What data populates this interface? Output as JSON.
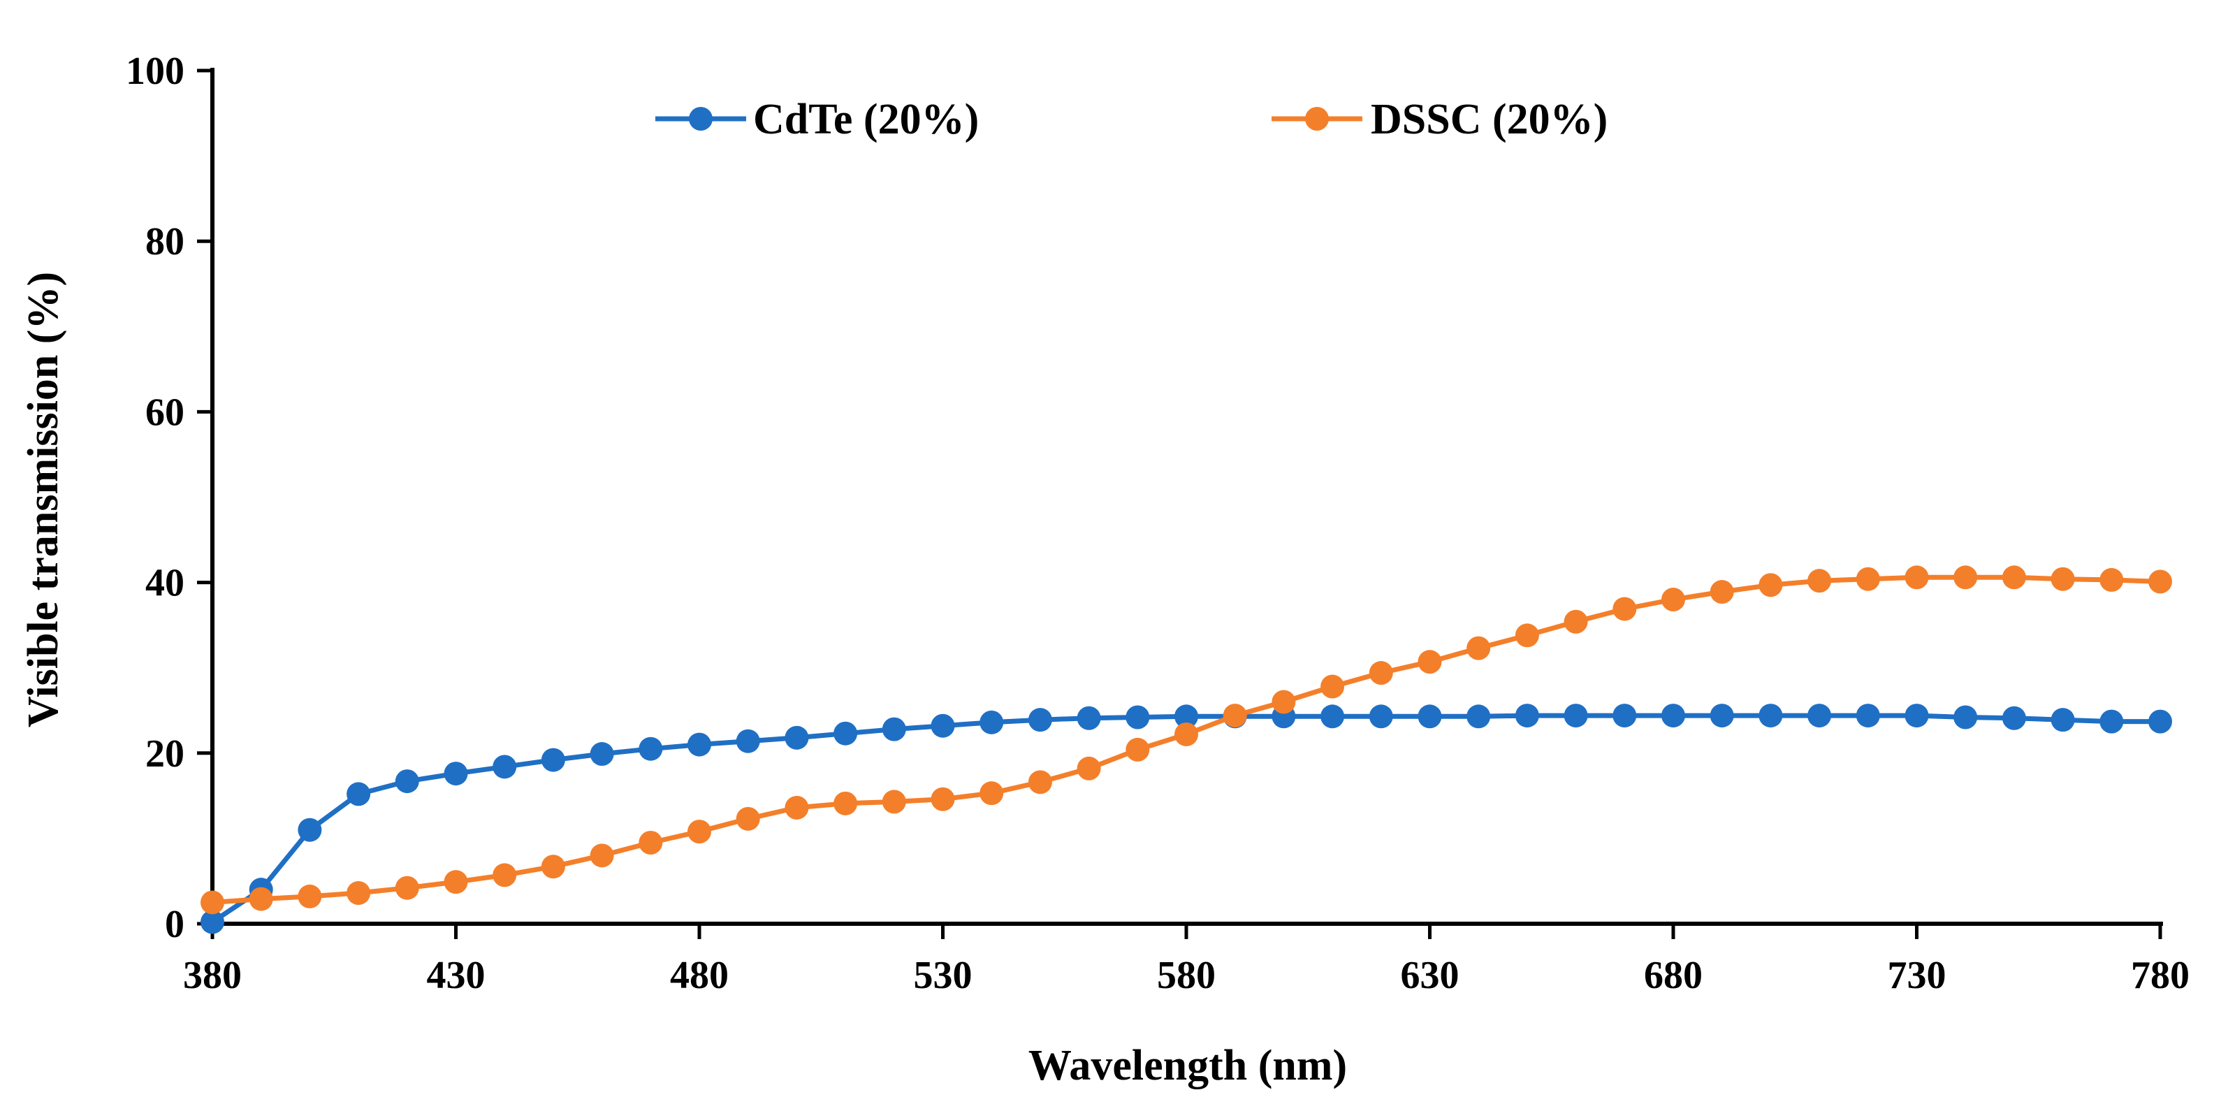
{
  "chart_data": {
    "type": "line",
    "title": "",
    "xlabel": "Wavelength (nm)",
    "ylabel": "Visible transmission (%)",
    "xlim": [
      380,
      780
    ],
    "ylim": [
      0,
      100
    ],
    "xticks": [
      380,
      430,
      480,
      530,
      580,
      630,
      680,
      730,
      780
    ],
    "yticks": [
      0,
      20,
      40,
      60,
      80,
      100
    ],
    "grid": false,
    "legend_position": "top-center",
    "x": [
      380,
      390,
      400,
      410,
      420,
      430,
      440,
      450,
      460,
      470,
      480,
      490,
      500,
      510,
      520,
      530,
      540,
      550,
      560,
      570,
      580,
      590,
      600,
      610,
      620,
      630,
      640,
      650,
      660,
      670,
      680,
      690,
      700,
      710,
      720,
      730,
      740,
      750,
      760,
      770,
      780
    ],
    "series": [
      {
        "name": "CdTe (20%)",
        "color": "#1f6fc5",
        "values": [
          0.2,
          4.0,
          11.0,
          15.2,
          16.7,
          17.6,
          18.4,
          19.2,
          19.9,
          20.5,
          21.0,
          21.4,
          21.8,
          22.3,
          22.8,
          23.2,
          23.6,
          23.9,
          24.1,
          24.2,
          24.3,
          24.3,
          24.3,
          24.3,
          24.3,
          24.3,
          24.3,
          24.4,
          24.4,
          24.4,
          24.4,
          24.4,
          24.4,
          24.4,
          24.4,
          24.4,
          24.2,
          24.1,
          23.9,
          23.7,
          23.7
        ]
      },
      {
        "name": "DSSC (20%)",
        "color": "#f47f2a",
        "values": [
          2.5,
          2.9,
          3.2,
          3.6,
          4.2,
          4.9,
          5.7,
          6.7,
          8.0,
          9.5,
          10.8,
          12.3,
          13.6,
          14.1,
          14.3,
          14.6,
          15.3,
          16.6,
          18.2,
          20.4,
          22.2,
          24.4,
          26.0,
          27.8,
          29.4,
          30.7,
          32.3,
          33.8,
          35.4,
          36.9,
          38.0,
          38.9,
          39.7,
          40.2,
          40.4,
          40.6,
          40.6,
          40.6,
          40.4,
          40.3,
          40.1
        ]
      }
    ]
  }
}
